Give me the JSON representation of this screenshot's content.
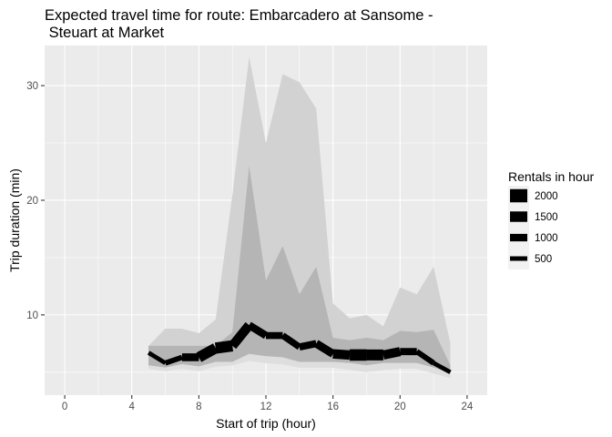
{
  "chart_data": {
    "type": "line",
    "title_lines": [
      "Expected travel time for route: Embarcadero at Sansome -",
      " Steuart at Market"
    ],
    "xlabel": "Start of trip (hour)",
    "ylabel": "Trip duration (min)",
    "xlim": [
      -1.2,
      25.2
    ],
    "ylim": [
      3,
      33.5
    ],
    "x_ticks": [
      0,
      4,
      8,
      12,
      16,
      20,
      24
    ],
    "y_ticks": [
      10,
      20,
      30
    ],
    "grid": true,
    "legend_position": "right",
    "legend": {
      "title": "Rentals in hour",
      "entries": [
        {
          "label": "2000",
          "value": 2000
        },
        {
          "label": "1500",
          "value": 1500
        },
        {
          "label": "1000",
          "value": 1000
        },
        {
          "label": "500",
          "value": 500
        }
      ]
    },
    "colors": {
      "panel": "#ebebeb",
      "grid": "#ffffff",
      "outer_band": "#d2d2d2",
      "inner_band": "#b5b5b5",
      "low_band": "#dedede",
      "line": "#000000"
    },
    "hours": [
      5,
      6,
      7,
      8,
      9,
      10,
      11,
      12,
      13,
      14,
      15,
      16,
      17,
      18,
      19,
      20,
      21,
      22,
      23
    ],
    "median": [
      6.7,
      5.8,
      6.3,
      6.3,
      7.1,
      7.3,
      9.1,
      8.2,
      8.2,
      7.2,
      7.5,
      6.6,
      6.5,
      6.5,
      6.5,
      6.8,
      6.8,
      5.8,
      5.0
    ],
    "rentals": [
      400,
      500,
      700,
      1400,
      1700,
      1600,
      1100,
      900,
      900,
      800,
      1100,
      1100,
      1600,
      1800,
      1400,
      1200,
      700,
      600,
      300
    ],
    "outer_upper": [
      7.3,
      8.8,
      8.8,
      8.4,
      9.6,
      20.5,
      32.5,
      25.0,
      31.0,
      30.3,
      28.0,
      11.0,
      9.7,
      10.0,
      9.0,
      12.4,
      11.8,
      14.2,
      7.5
    ],
    "inner_upper": [
      7.3,
      7.3,
      7.3,
      7.3,
      7.3,
      8.5,
      23.0,
      13.0,
      16.0,
      11.8,
      14.2,
      8.0,
      7.8,
      8.0,
      7.8,
      8.6,
      8.5,
      8.7,
      5.6
    ],
    "inner_lower": [
      5.6,
      5.4,
      5.7,
      5.5,
      5.9,
      5.9,
      6.6,
      6.4,
      6.3,
      5.9,
      5.9,
      5.9,
      5.8,
      5.6,
      5.8,
      5.8,
      5.8,
      5.4,
      4.9
    ],
    "outer_lower": [
      5.3,
      5.1,
      5.3,
      5.1,
      5.5,
      5.6,
      6.0,
      5.8,
      5.7,
      5.4,
      5.4,
      5.4,
      5.2,
      5.0,
      5.2,
      5.3,
      5.3,
      4.9,
      4.5
    ]
  }
}
